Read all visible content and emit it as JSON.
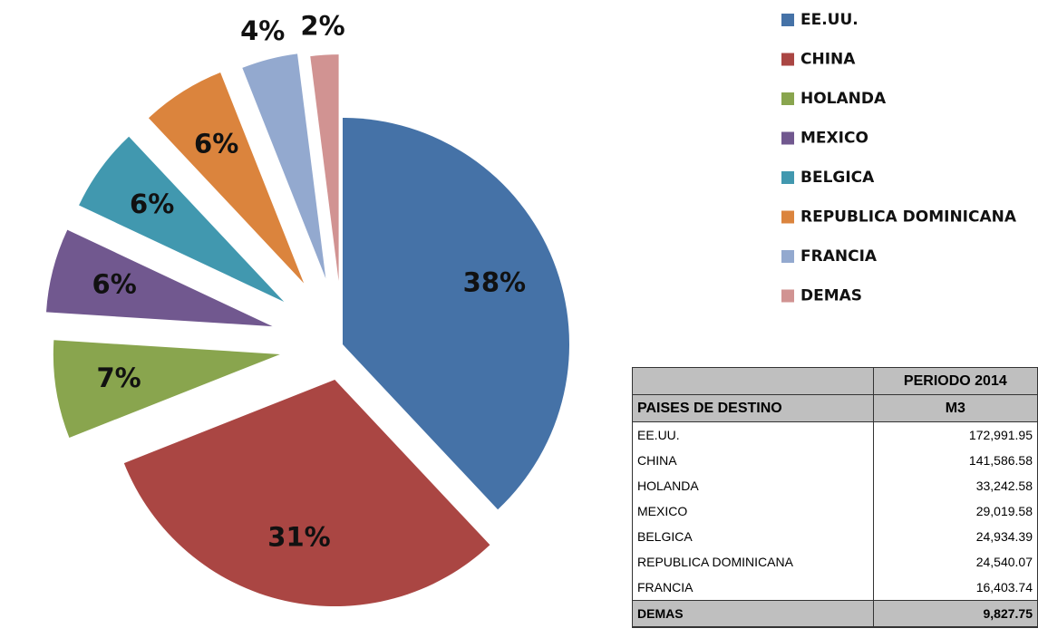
{
  "chart_data": {
    "type": "pie",
    "categories": [
      "EE.UU.",
      "CHINA",
      "HOLANDA",
      "MEXICO",
      "BELGICA",
      "REPUBLICA  DOMINICANA",
      "FRANCIA",
      "DEMAS"
    ],
    "values": [
      38,
      31,
      7,
      6,
      6,
      6,
      4,
      2
    ],
    "value_labels": [
      "38%",
      "31%",
      "7%",
      "6%",
      "6%",
      "6%",
      "4%",
      "2%"
    ],
    "colors": [
      "#4572a7",
      "#aa4643",
      "#89a54e",
      "#71588f",
      "#4198af",
      "#db843d",
      "#93a9cf",
      "#d19392"
    ]
  },
  "table": {
    "header": "PERIODO 2014",
    "columns": [
      "PAISES DE DESTINO",
      "M3"
    ],
    "rows": [
      [
        "EE.UU.",
        "172,991.95"
      ],
      [
        "CHINA",
        "141,586.58"
      ],
      [
        "HOLANDA",
        "33,242.58"
      ],
      [
        "MEXICO",
        "29,019.58"
      ],
      [
        "BELGICA",
        "24,934.39"
      ],
      [
        "REPUBLICA DOMINICANA",
        "24,540.07"
      ],
      [
        "FRANCIA",
        "16,403.74"
      ],
      [
        "DEMAS",
        "9,827.75"
      ]
    ]
  }
}
